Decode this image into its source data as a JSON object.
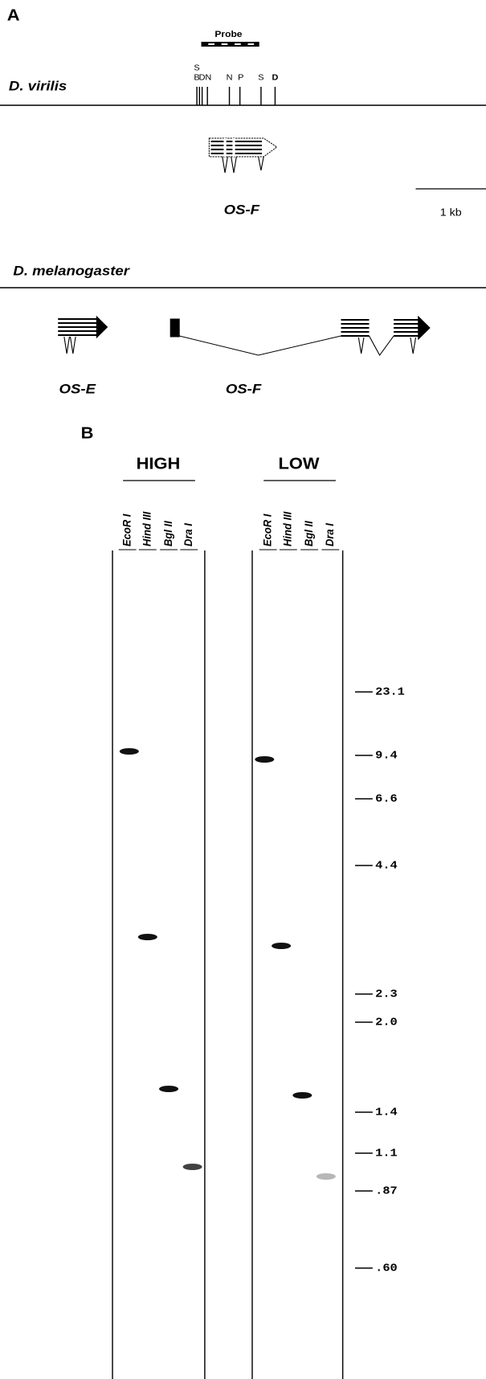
{
  "panel_a": {
    "label": "A",
    "probe": "Probe",
    "virilis": {
      "species": "D. virilis",
      "sites": [
        "S",
        "B",
        "D",
        "N",
        "N",
        "P",
        "S",
        "D"
      ],
      "gene": "OS-F",
      "scale": "1 kb"
    },
    "melanogaster": {
      "species": "D. melanogaster",
      "genes": [
        "OS-E",
        "OS-F"
      ]
    }
  },
  "panel_b": {
    "label": "B",
    "blots": [
      {
        "title": "HIGH",
        "lanes": [
          "EcoR I",
          "Hind III",
          "Bgl II",
          "Dra I"
        ]
      },
      {
        "title": "LOW",
        "lanes": [
          "EcoR I",
          "Hind III",
          "Bgl II",
          "Dra I"
        ]
      }
    ],
    "markers": [
      "23.1",
      "9.4",
      "6.6",
      "4.4",
      "2.3",
      "2.0",
      "1.4",
      "1.1",
      ".87",
      ".60"
    ]
  }
}
